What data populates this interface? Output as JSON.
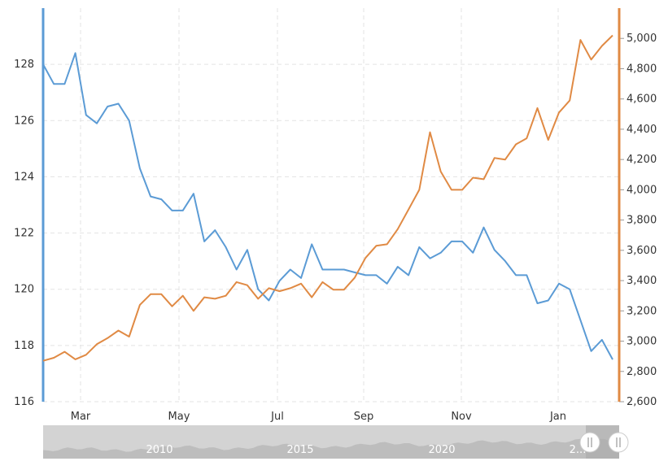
{
  "chart_data": {
    "type": "line",
    "title": "",
    "xlabel": "",
    "x_ticks": [
      "Mar",
      "May",
      "Jul",
      "Sep",
      "Nov",
      "Jan"
    ],
    "y_left": {
      "range": [
        116,
        130
      ],
      "ticks": [
        "116",
        "118",
        "120",
        "122",
        "124",
        "126",
        "128"
      ]
    },
    "y_right": {
      "range": [
        2600,
        5200
      ],
      "ticks": [
        "2,600",
        "2,800",
        "3,000",
        "3,200",
        "3,400",
        "3,600",
        "3,800",
        "4,000",
        "4,200",
        "4,400",
        "4,600",
        "4,800",
        "5,000"
      ]
    },
    "grid": true,
    "series": [
      {
        "axis": "left",
        "color": "#5b9bd5",
        "values": [
          128.0,
          127.3,
          127.3,
          128.4,
          126.2,
          125.9,
          126.5,
          126.6,
          126.0,
          124.3,
          123.3,
          123.2,
          122.8,
          122.8,
          123.4,
          121.7,
          122.1,
          121.5,
          120.7,
          121.4,
          120.0,
          119.6,
          120.3,
          120.7,
          120.4,
          121.6,
          120.7,
          120.7,
          120.7,
          120.6,
          120.5,
          120.5,
          120.2,
          120.8,
          120.5,
          121.5,
          121.1,
          121.3,
          121.7,
          121.7,
          121.3,
          122.2,
          121.4,
          121.0,
          120.5,
          120.5,
          119.5,
          119.6,
          120.2,
          120.0,
          118.9,
          117.8,
          118.2,
          117.5
        ]
      },
      {
        "axis": "right",
        "color": "#e08a44",
        "values": [
          2870,
          2890,
          2930,
          2880,
          2910,
          2980,
          3020,
          3070,
          3030,
          3240,
          3310,
          3310,
          3230,
          3300,
          3200,
          3290,
          3280,
          3300,
          3390,
          3370,
          3280,
          3350,
          3330,
          3350,
          3380,
          3290,
          3390,
          3340,
          3340,
          3420,
          3550,
          3630,
          3640,
          3740,
          3870,
          4000,
          4380,
          4120,
          4000,
          4000,
          4080,
          4070,
          4210,
          4200,
          4300,
          4340,
          4540,
          4330,
          4510,
          4590,
          4990,
          4860,
          4950,
          5020
        ]
      }
    ],
    "navigator": {
      "labels": [
        "2010",
        "2015",
        "2020",
        "2..."
      ]
    }
  }
}
